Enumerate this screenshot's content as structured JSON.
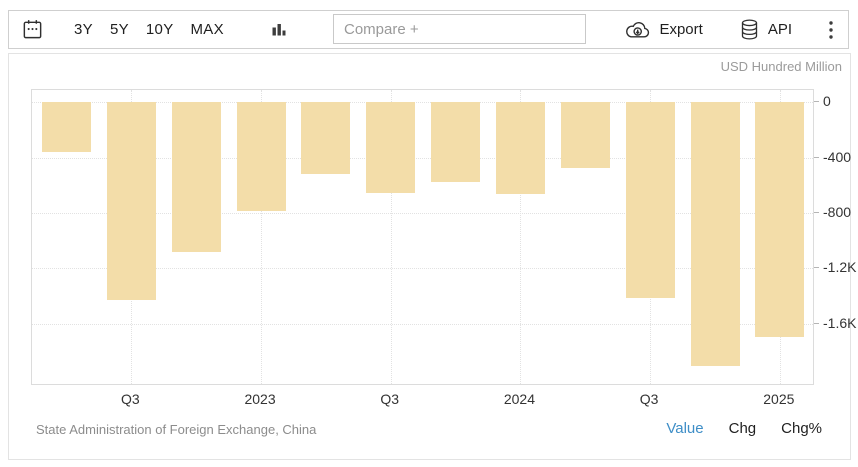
{
  "toolbar": {
    "ranges": [
      "3Y",
      "5Y",
      "10Y",
      "MAX"
    ],
    "compare_placeholder": "Compare +",
    "export_label": "Export",
    "api_label": "API"
  },
  "icons": [
    "calendar-icon",
    "bar-chart-icon",
    "cloud-download-icon",
    "database-icon",
    "kebab-menu-icon"
  ],
  "colors": {
    "bar": "#f3dda9",
    "accent_blue": "#3e8ec7",
    "axis_text": "#333333",
    "muted_text": "#9b9b9b",
    "grid": "#e2e2e2"
  },
  "footer": {
    "source": "State Administration of Foreign Exchange, China",
    "links": [
      {
        "label": "Value",
        "active": true
      },
      {
        "label": "Chg",
        "active": false
      },
      {
        "label": "Chg%",
        "active": false
      }
    ]
  },
  "chart_data": {
    "type": "bar",
    "title": "",
    "unit_label": "USD Hundred Million",
    "source": "State Administration of Foreign Exchange, China",
    "values": [
      -360,
      -1430,
      -1080,
      -785,
      -520,
      -655,
      -575,
      -660,
      -475,
      -1415,
      -1905,
      -1695
    ],
    "x_tick_labels": [
      {
        "index": 1,
        "label": "Q3"
      },
      {
        "index": 3,
        "label": "2023"
      },
      {
        "index": 5,
        "label": "Q3"
      },
      {
        "index": 7,
        "label": "2024"
      },
      {
        "index": 9,
        "label": "Q3"
      },
      {
        "index": 11,
        "label": "2025"
      }
    ],
    "y_ticks": [
      {
        "value": 0,
        "label": "0"
      },
      {
        "value": -400,
        "label": "-400"
      },
      {
        "value": -800,
        "label": "-800"
      },
      {
        "value": -1200,
        "label": "-1.2K"
      },
      {
        "value": -1600,
        "label": "-1.6K"
      }
    ],
    "ylim": [
      -2033,
      87
    ],
    "grid": "dotted",
    "legend": null,
    "bar_color": "#f3dda9"
  }
}
